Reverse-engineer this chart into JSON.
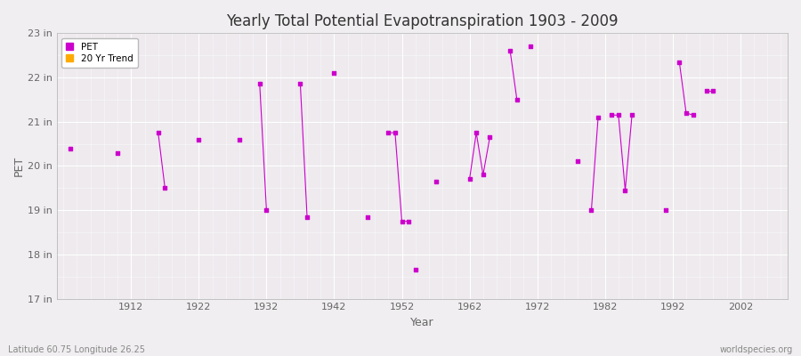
{
  "title": "Yearly Total Potential Evapotranspiration 1903 - 2009",
  "xlabel": "Year",
  "ylabel": "PET",
  "subtitle_left": "Latitude 60.75 Longitude 26.25",
  "subtitle_right": "worldspecies.org",
  "ylim": [
    17,
    23
  ],
  "xlim": [
    1901,
    2009
  ],
  "ytick_labels": [
    "17 in",
    "18 in",
    "19 in",
    "20 in",
    "21 in",
    "22 in",
    "23 in"
  ],
  "ytick_values": [
    17,
    18,
    19,
    20,
    21,
    22,
    23
  ],
  "xtick_values": [
    1912,
    1922,
    1932,
    1942,
    1952,
    1962,
    1972,
    1982,
    1992,
    2002
  ],
  "pet_color": "#cc00cc",
  "trend_color": "#ffaa00",
  "background_color": "#f0eef0",
  "plot_bg_color": "#eeeaee",
  "legend_bg": "#ffffff",
  "pet_data": [
    [
      1903,
      20.4
    ],
    [
      1910,
      20.3
    ],
    [
      1916,
      20.75
    ],
    [
      1917,
      19.5
    ],
    [
      1922,
      20.6
    ],
    [
      1928,
      20.6
    ],
    [
      1931,
      21.85
    ],
    [
      1932,
      19.0
    ],
    [
      1937,
      21.85
    ],
    [
      1938,
      18.85
    ],
    [
      1942,
      22.1
    ],
    [
      1947,
      18.85
    ],
    [
      1950,
      20.75
    ],
    [
      1951,
      20.75
    ],
    [
      1952,
      18.75
    ],
    [
      1953,
      18.75
    ],
    [
      1954,
      17.65
    ],
    [
      1957,
      19.65
    ],
    [
      1962,
      19.7
    ],
    [
      1963,
      20.75
    ],
    [
      1964,
      19.8
    ],
    [
      1965,
      20.65
    ],
    [
      1968,
      22.6
    ],
    [
      1969,
      21.5
    ],
    [
      1971,
      22.7
    ],
    [
      1978,
      20.1
    ],
    [
      1980,
      19.0
    ],
    [
      1981,
      21.1
    ],
    [
      1983,
      21.15
    ],
    [
      1984,
      21.15
    ],
    [
      1985,
      19.45
    ],
    [
      1986,
      21.15
    ],
    [
      1991,
      19.0
    ],
    [
      1993,
      22.35
    ],
    [
      1994,
      21.2
    ],
    [
      1995,
      21.15
    ],
    [
      1997,
      21.7
    ],
    [
      1998,
      21.7
    ]
  ],
  "connected_segments": [
    [
      [
        1916,
        20.75
      ],
      [
        1917,
        19.5
      ]
    ],
    [
      [
        1931,
        21.85
      ],
      [
        1932,
        19.0
      ]
    ],
    [
      [
        1937,
        21.85
      ],
      [
        1938,
        18.85
      ]
    ],
    [
      [
        1950,
        20.75
      ],
      [
        1951,
        20.75
      ],
      [
        1952,
        18.75
      ],
      [
        1953,
        18.75
      ]
    ],
    [
      [
        1962,
        19.7
      ],
      [
        1963,
        20.75
      ],
      [
        1964,
        19.8
      ],
      [
        1965,
        20.65
      ]
    ],
    [
      [
        1968,
        22.6
      ],
      [
        1969,
        21.5
      ]
    ],
    [
      [
        1980,
        19.0
      ],
      [
        1981,
        21.1
      ]
    ],
    [
      [
        1983,
        21.15
      ],
      [
        1984,
        21.15
      ],
      [
        1985,
        19.45
      ],
      [
        1986,
        21.15
      ]
    ],
    [
      [
        1993,
        22.35
      ],
      [
        1994,
        21.2
      ],
      [
        1995,
        21.15
      ]
    ],
    [
      [
        1997,
        21.7
      ],
      [
        1998,
        21.7
      ]
    ]
  ]
}
